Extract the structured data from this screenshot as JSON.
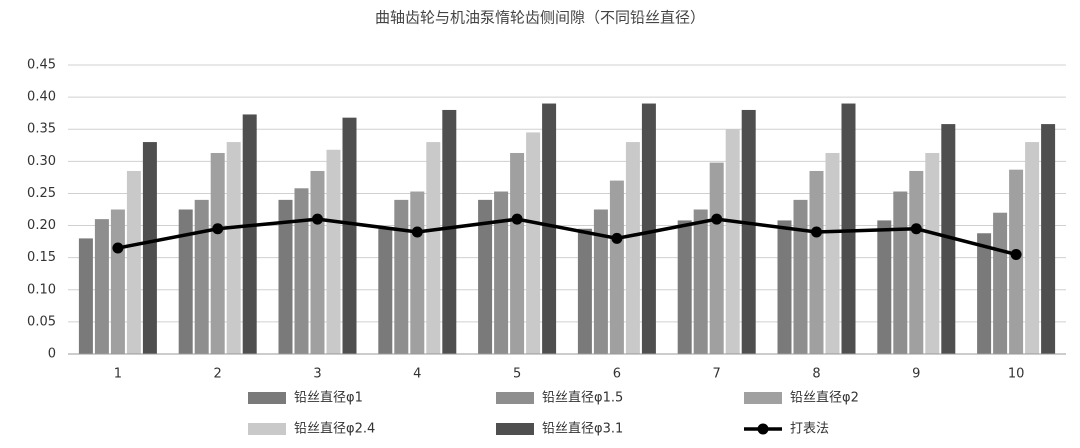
{
  "chart_data": {
    "type": "bar",
    "title": "曲轴齿轮与机油泵惰轮齿侧间隙（不同铅丝直径）",
    "categories": [
      "1",
      "2",
      "3",
      "4",
      "5",
      "6",
      "7",
      "8",
      "9",
      "10"
    ],
    "series": [
      {
        "name": "铅丝直径φ1",
        "color": "#7a7a7a",
        "values": [
          0.18,
          0.225,
          0.24,
          0.195,
          0.24,
          0.195,
          0.208,
          0.208,
          0.208,
          0.188
        ]
      },
      {
        "name": "铅丝直径φ1.5",
        "color": "#8e8e8e",
        "values": [
          0.21,
          0.24,
          0.258,
          0.24,
          0.253,
          0.225,
          0.225,
          0.24,
          0.253,
          0.22
        ]
      },
      {
        "name": "铅丝直径φ2",
        "color": "#a0a0a0",
        "values": [
          0.225,
          0.313,
          0.285,
          0.253,
          0.313,
          0.27,
          0.298,
          0.285,
          0.285,
          0.287
        ]
      },
      {
        "name": "铅丝直径φ2.4",
        "color": "#c9c9c9",
        "values": [
          0.285,
          0.33,
          0.318,
          0.33,
          0.345,
          0.33,
          0.35,
          0.313,
          0.313,
          0.33
        ]
      },
      {
        "name": "铅丝直径φ3.1",
        "color": "#4f4f4f",
        "values": [
          0.33,
          0.373,
          0.368,
          0.38,
          0.39,
          0.39,
          0.38,
          0.39,
          0.358,
          0.358
        ]
      },
      {
        "name": "打表法",
        "color": "#000000",
        "type": "line",
        "values": [
          0.165,
          0.195,
          0.21,
          0.19,
          0.21,
          0.18,
          0.21,
          0.19,
          0.195,
          0.155
        ]
      }
    ],
    "ylim": [
      0,
      0.45
    ],
    "yticks": [
      0,
      0.05,
      {
        "value": 0.1,
        "label": "0.10"
      },
      0.15,
      {
        "value": 0.2,
        "label": "0.20"
      },
      0.25,
      {
        "value": 0.3,
        "label": "0.30"
      },
      0.35,
      {
        "value": 0.4,
        "label": "0.40"
      },
      0.45
    ],
    "grid": true
  }
}
